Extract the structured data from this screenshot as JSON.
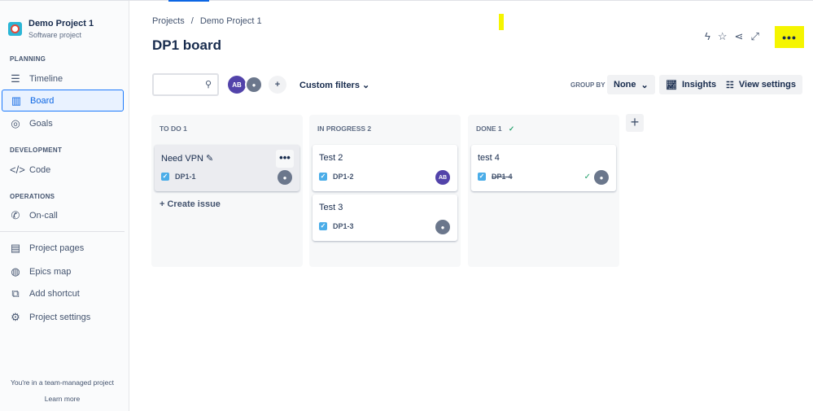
{
  "sidebar": {
    "project_name": "Demo Project 1",
    "project_type": "Software project",
    "sections": {
      "planning": "PLANNING",
      "development": "DEVELOPMENT",
      "operations": "OPERATIONS"
    },
    "items": [
      {
        "label": "Timeline",
        "icon": "timeline-icon"
      },
      {
        "label": "Board",
        "icon": "board-icon",
        "active": true
      },
      {
        "label": "Goals",
        "icon": "goals-icon"
      },
      {
        "label": "Code",
        "icon": "code-icon"
      },
      {
        "label": "On-call",
        "icon": "on-call-icon"
      },
      {
        "label": "Project pages",
        "icon": "pages-icon"
      },
      {
        "label": "Epics map",
        "icon": "globe-icon"
      },
      {
        "label": "Add shortcut",
        "icon": "add-shortcut-icon"
      },
      {
        "label": "Project settings",
        "icon": "gear-icon"
      }
    ],
    "footer_text": "You're in a team-managed project",
    "learn_more": "Learn more"
  },
  "header": {
    "breadcrumb": [
      "Projects",
      "Demo Project 1"
    ],
    "title": "DP1 board",
    "more": "•••"
  },
  "toolbar": {
    "avatar_initials": "AB",
    "custom_filters": "Custom filters",
    "group_by_label": "GROUP BY",
    "group_by_value": "None",
    "insights": "Insights",
    "view_settings": "View settings"
  },
  "colors": {
    "accent": "#0c66e4",
    "highlight": "#f5f500",
    "avatar": "#5243aa"
  },
  "columns": [
    {
      "title": "TO DO 1",
      "cards": [
        {
          "title": "Need VPN",
          "key": "DP1-1",
          "assignee": "unassigned"
        }
      ],
      "create": "Create issue"
    },
    {
      "title": "IN PROGRESS 2",
      "cards": [
        {
          "title": "Test 2",
          "key": "DP1-2",
          "assignee": "AB"
        },
        {
          "title": "Test 3",
          "key": "DP1-3",
          "assignee": "unassigned"
        }
      ]
    },
    {
      "title": "DONE 1",
      "cards": [
        {
          "title": "test 4",
          "key": "DP1-4",
          "assignee": "unassigned",
          "done": true
        }
      ]
    }
  ]
}
